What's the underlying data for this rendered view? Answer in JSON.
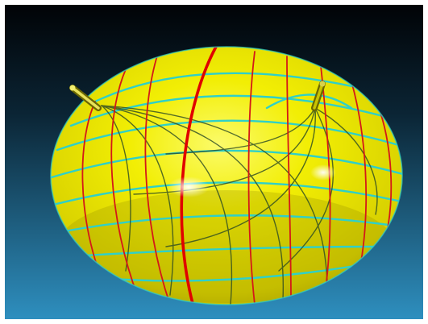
{
  "scene": {
    "subject": "ellipsoid-surface",
    "colors": {
      "background_top": "#010306",
      "background_bottom": "#2e8fbf",
      "frame": "#ffffff",
      "surface_light": "#fbfb6a",
      "surface_mid": "#f2ee04",
      "surface_dark": "#a79f00",
      "meridian_line": "#d41818",
      "highlight_meridian": "#e00000",
      "parallel_line": "#2fd0c8",
      "axis_rod": "#c9c400",
      "axis_rod_shade": "#6b6700"
    },
    "grid": {
      "meridians_shown": 9,
      "parallels_shown": 9
    }
  }
}
